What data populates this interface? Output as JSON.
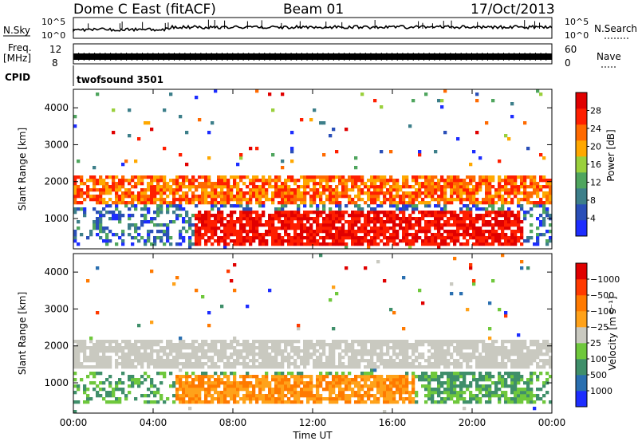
{
  "header": {
    "title": "Dome C East (fitACF)",
    "beam": "Beam 01",
    "date": "17/Oct/2013"
  },
  "strips": {
    "nsky_label": "N.Sky",
    "nsearch_label": "N.Search",
    "noise_ticks": [
      "10^5",
      "10^0"
    ],
    "freq_label_1": "Freq.",
    "freq_label_2": "[MHz]",
    "freq_ticks": [
      "12",
      "8"
    ],
    "nave_label": "Nave",
    "nave_ticks": [
      "60",
      "0"
    ],
    "cpid_label": "CPID",
    "cpid_value": "twofsound 3501"
  },
  "chart_data": [
    {
      "type": "heatmap",
      "panel": "power",
      "ylabel": "Slant Range [km]",
      "xlabel": "",
      "x_ticks": [
        "00:00",
        "04:00",
        "08:00",
        "12:00",
        "16:00",
        "20:00",
        "00:00"
      ],
      "x_range_hours": [
        0,
        24
      ],
      "y_ticks": [
        1000,
        2000,
        3000,
        4000
      ],
      "y_range_km": [
        180,
        4500
      ],
      "colorbar": {
        "label": "Power [dB]",
        "ticks": [
          "4",
          "8",
          "12",
          "16",
          "20",
          "24",
          "28"
        ],
        "colors": [
          "#1d2dff",
          "#2a4fb8",
          "#3d7f8a",
          "#4fa55e",
          "#9ad03c",
          "#ffa800",
          "#ff6a00",
          "#ff1f00",
          "#e00000"
        ]
      },
      "features": [
        {
          "range_km": [
            1400,
            2100
          ],
          "hours": [
            0,
            24
          ],
          "level": "16-28 dB"
        },
        {
          "range_km": [
            300,
            1200
          ],
          "hours": [
            6,
            22
          ],
          "level": "28+ dB"
        }
      ]
    },
    {
      "type": "heatmap",
      "panel": "velocity",
      "ylabel": "Slant Range [km]",
      "xlabel": "Time UT",
      "x_ticks": [
        "00:00",
        "04:00",
        "08:00",
        "12:00",
        "16:00",
        "20:00",
        "00:00"
      ],
      "x_range_hours": [
        0,
        24
      ],
      "y_ticks": [
        1000,
        2000,
        3000,
        4000
      ],
      "y_range_km": [
        180,
        4500
      ],
      "colorbar": {
        "label": "Velocity [m s⁻¹]",
        "ticks": [
          "1000",
          "500",
          "100",
          "25",
          "−25",
          "−100",
          "−500",
          "−1000"
        ],
        "colors": [
          "#1d2dff",
          "#2a6fb0",
          "#3f8f6a",
          "#6fc83c",
          "#c9c9c0",
          "#ffa21a",
          "#ff7a00",
          "#ff3a00",
          "#e00000"
        ]
      },
      "features": [
        {
          "range_km": [
            1400,
            2100
          ],
          "hours": [
            0,
            24
          ],
          "level": "ground scatter (±25 m/s)"
        },
        {
          "range_km": [
            400,
            1200
          ],
          "hours": [
            5,
            17
          ],
          "level": "-100 to -500 m/s"
        },
        {
          "range_km": [
            400,
            1300
          ],
          "hours": [
            17.5,
            23
          ],
          "level": "100 to 500 m/s"
        }
      ]
    }
  ]
}
